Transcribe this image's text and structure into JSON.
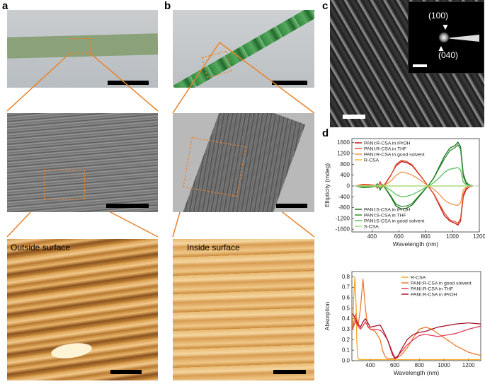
{
  "panels": {
    "a": "a",
    "b": "b",
    "c": "c",
    "d": "d"
  },
  "afm_labels": {
    "outside": "Outside surface",
    "inside": "Inside surface"
  },
  "saed_labels": {
    "top": "(100)",
    "bottom": "(040)"
  },
  "colors": {
    "fiber_green": "#2f8a3c",
    "orange_dash": "#e8822a",
    "afm_gold": "#c98a3a"
  },
  "chart_data": [
    {
      "type": "line",
      "title": "",
      "xlabel": "Wavelength (nm)",
      "ylabel": "Ellipticity (mdeg)",
      "xlim": [
        250,
        1200
      ],
      "ylim": [
        -1700,
        1750
      ],
      "xticks": [
        400,
        600,
        800,
        1000,
        1200
      ],
      "yticks": [
        -1600,
        -1200,
        -800,
        -400,
        0,
        400,
        800,
        1200,
        1600
      ],
      "legend_top": [
        {
          "name": "PANI:R-CSA in iPrOH",
          "color": "#c0161d"
        },
        {
          "name": "PANI:R-CSA in THF",
          "color": "#e2522e"
        },
        {
          "name": "PANI:R-CSA in good solvent",
          "color": "#f0934e"
        },
        {
          "name": "R-CSA",
          "color": "#f5b93a"
        }
      ],
      "legend_bottom": [
        {
          "name": "PANI:S-CSA in iPrOH",
          "color": "#1b6b1e"
        },
        {
          "name": "PANI:S-CSA in THF",
          "color": "#2f8f2e"
        },
        {
          "name": "PANI:S-CSA in good solvent",
          "color": "#5cc25a"
        },
        {
          "name": "S-CSA",
          "color": "#9de07a"
        }
      ],
      "series": [
        {
          "name": "PANI:R-CSA in iPrOH",
          "color": "#c0161d",
          "x": [
            280,
            330,
            380,
            420,
            440,
            460,
            480,
            500,
            540,
            580,
            620,
            660,
            700,
            740,
            780,
            820,
            860,
            900,
            940,
            980,
            1020,
            1040,
            1060,
            1080,
            1100,
            1120,
            1150
          ],
          "values": [
            0,
            60,
            50,
            20,
            -80,
            150,
            -40,
            100,
            400,
            750,
            900,
            860,
            750,
            500,
            250,
            -20,
            -300,
            -700,
            -1100,
            -1300,
            -1380,
            -1450,
            -1300,
            -400,
            -150,
            -50,
            0
          ]
        },
        {
          "name": "PANI:R-CSA in THF",
          "color": "#e2522e",
          "x": [
            280,
            330,
            380,
            420,
            440,
            460,
            480,
            500,
            540,
            580,
            620,
            660,
            700,
            740,
            780,
            820,
            860,
            900,
            940,
            980,
            1020,
            1040,
            1060,
            1080,
            1100,
            1120,
            1150
          ],
          "values": [
            0,
            50,
            40,
            20,
            -70,
            130,
            -30,
            80,
            380,
            800,
            950,
            900,
            780,
            520,
            260,
            -20,
            -280,
            -650,
            -1000,
            -1250,
            -1320,
            -1380,
            -1200,
            -300,
            -100,
            -40,
            0
          ]
        },
        {
          "name": "PANI:R-CSA in good solvent",
          "color": "#f0934e",
          "x": [
            280,
            330,
            380,
            420,
            440,
            460,
            480,
            500,
            540,
            580,
            620,
            660,
            700,
            740,
            780,
            820,
            860,
            900,
            940,
            980,
            1020,
            1040,
            1060,
            1080,
            1100,
            1120,
            1150
          ],
          "values": [
            0,
            20,
            15,
            10,
            -30,
            60,
            -10,
            40,
            180,
            400,
            520,
            480,
            400,
            280,
            140,
            0,
            -120,
            -300,
            -520,
            -650,
            -700,
            -720,
            -620,
            -150,
            -50,
            -20,
            0
          ]
        },
        {
          "name": "R-CSA",
          "color": "#f5b93a",
          "x": [
            280,
            400,
            600,
            800,
            1000,
            1150
          ],
          "values": [
            0,
            0,
            0,
            0,
            0,
            0
          ]
        },
        {
          "name": "PANI:S-CSA in iPrOH",
          "color": "#1b6b1e",
          "x": [
            280,
            330,
            380,
            420,
            440,
            460,
            480,
            500,
            540,
            580,
            620,
            660,
            700,
            740,
            780,
            820,
            860,
            900,
            940,
            980,
            1020,
            1040,
            1060,
            1080,
            1100,
            1120,
            1150
          ],
          "values": [
            0,
            -60,
            -50,
            -20,
            80,
            -150,
            40,
            -100,
            -400,
            -750,
            -850,
            -820,
            -700,
            -460,
            -220,
            20,
            300,
            700,
            1100,
            1400,
            1500,
            1620,
            1450,
            450,
            150,
            50,
            0
          ]
        },
        {
          "name": "PANI:S-CSA in THF",
          "color": "#2f8f2e",
          "x": [
            280,
            330,
            380,
            420,
            440,
            460,
            480,
            500,
            540,
            580,
            620,
            660,
            700,
            740,
            780,
            820,
            860,
            900,
            940,
            980,
            1020,
            1040,
            1060,
            1080,
            1100,
            1120,
            1150
          ],
          "values": [
            0,
            -50,
            -40,
            -20,
            70,
            -130,
            30,
            -80,
            -360,
            -680,
            -760,
            -740,
            -640,
            -420,
            -200,
            20,
            280,
            650,
            1000,
            1300,
            1420,
            1520,
            1350,
            350,
            100,
            40,
            0
          ]
        },
        {
          "name": "PANI:S-CSA in good solvent",
          "color": "#5cc25a",
          "x": [
            280,
            330,
            380,
            420,
            440,
            460,
            480,
            500,
            540,
            580,
            620,
            660,
            700,
            740,
            780,
            820,
            860,
            900,
            940,
            980,
            1020,
            1040,
            1060,
            1080,
            1100,
            1120,
            1150
          ],
          "values": [
            0,
            -20,
            -15,
            -10,
            30,
            -60,
            10,
            -40,
            -160,
            -320,
            -400,
            -380,
            -320,
            -220,
            -110,
            0,
            120,
            300,
            500,
            620,
            660,
            680,
            600,
            140,
            50,
            20,
            0
          ]
        },
        {
          "name": "S-CSA",
          "color": "#9de07a",
          "x": [
            280,
            400,
            600,
            800,
            1000,
            1150
          ],
          "values": [
            0,
            0,
            0,
            0,
            0,
            0
          ]
        }
      ]
    },
    {
      "type": "line",
      "title": "",
      "xlabel": "Wavelength (nm)",
      "ylabel": "Absorption",
      "xlim": [
        250,
        1300
      ],
      "ylim": [
        0,
        0.85
      ],
      "xticks": [
        400,
        600,
        800,
        1000,
        1200
      ],
      "yticks": [
        0,
        0.1,
        0.2,
        0.3,
        0.4,
        0.5,
        0.6,
        0.7,
        0.8
      ],
      "yticklabels": [
        "0.0",
        "0.1",
        "0.2",
        "0.3",
        "0.4",
        "0.5",
        "0.6",
        "0.7",
        "0.8"
      ],
      "series": [
        {
          "name": "R-CSA",
          "color": "#f5a623",
          "x": [
            255,
            265,
            275,
            285,
            290,
            295,
            300,
            310,
            320,
            340,
            400,
            600,
            800,
            1000,
            1300
          ],
          "values": [
            0.3,
            0.6,
            0.8,
            0.5,
            0.2,
            0.06,
            0.02,
            0.01,
            0.01,
            0.01,
            0.01,
            0.01,
            0.01,
            0.01,
            0.01
          ]
        },
        {
          "name": "PANI:R-CSA in good solvent",
          "color": "#ee7a2e",
          "x": [
            255,
            280,
            300,
            320,
            340,
            360,
            380,
            400,
            440,
            480,
            500,
            520,
            540,
            560,
            580,
            600,
            650,
            700,
            750,
            800,
            850,
            900,
            950,
            1000,
            1100,
            1200,
            1300
          ],
          "values": [
            0.3,
            0.45,
            0.33,
            0.5,
            0.78,
            0.5,
            0.32,
            0.3,
            0.28,
            0.2,
            0.1,
            0.04,
            0.02,
            0.02,
            0.02,
            0.02,
            0.05,
            0.12,
            0.22,
            0.3,
            0.32,
            0.3,
            0.26,
            0.22,
            0.14,
            0.08,
            0.05
          ]
        },
        {
          "name": "PANI:R-CSA in THF",
          "color": "#e23a55",
          "x": [
            255,
            280,
            300,
            320,
            340,
            360,
            380,
            400,
            440,
            480,
            500,
            540,
            580,
            600,
            620,
            650,
            700,
            750,
            800,
            850,
            900,
            950,
            1000,
            1100,
            1200,
            1300
          ],
          "values": [
            0.3,
            0.38,
            0.33,
            0.3,
            0.33,
            0.37,
            0.33,
            0.3,
            0.3,
            0.29,
            0.27,
            0.2,
            0.08,
            0.03,
            0.04,
            0.08,
            0.15,
            0.2,
            0.24,
            0.25,
            0.24,
            0.23,
            0.24,
            0.26,
            0.3,
            0.33
          ]
        },
        {
          "name": "PANI:R-CSA in iPrOH",
          "color": "#a5122a",
          "x": [
            255,
            280,
            300,
            320,
            340,
            360,
            380,
            400,
            440,
            480,
            500,
            540,
            580,
            600,
            620,
            650,
            700,
            750,
            800,
            850,
            900,
            950,
            1000,
            1100,
            1200,
            1300
          ],
          "values": [
            0.45,
            0.4,
            0.35,
            0.32,
            0.37,
            0.4,
            0.36,
            0.32,
            0.33,
            0.34,
            0.3,
            0.2,
            0.06,
            0.02,
            0.03,
            0.1,
            0.2,
            0.25,
            0.27,
            0.28,
            0.3,
            0.32,
            0.33,
            0.35,
            0.36,
            0.35
          ]
        }
      ]
    }
  ]
}
